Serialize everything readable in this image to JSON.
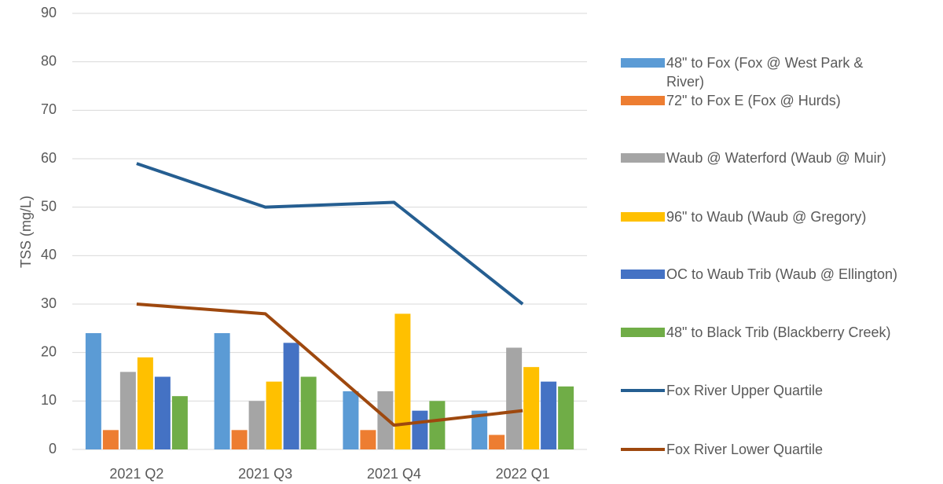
{
  "chart_data": {
    "type": "bar",
    "y_label": "TSS (mg/L)",
    "categories": [
      "2021 Q2",
      "2021 Q3",
      "2021 Q4",
      "2022 Q1"
    ],
    "ylim": [
      0,
      90
    ],
    "yticks": [
      0,
      10,
      20,
      30,
      40,
      50,
      60,
      70,
      80,
      90
    ],
    "grid": true,
    "series": [
      {
        "name": "48\" to Fox (Fox @ West Park & River)",
        "type": "bar",
        "color": "#5b9bd5",
        "values": [
          24,
          24,
          12,
          8
        ]
      },
      {
        "name": "72\" to Fox E (Fox @ Hurds)",
        "type": "bar",
        "color": "#ed7d31",
        "values": [
          4,
          4,
          4,
          3
        ]
      },
      {
        "name": "Waub @ Waterford (Waub @ Muir)",
        "type": "bar",
        "color": "#a5a5a5",
        "values": [
          16,
          10,
          12,
          21
        ]
      },
      {
        "name": "96\" to Waub (Waub @ Gregory)",
        "type": "bar",
        "color": "#ffc000",
        "values": [
          19,
          14,
          28,
          17
        ]
      },
      {
        "name": "OC to Waub Trib (Waub @ Ellington)",
        "type": "bar",
        "color": "#4472c4",
        "values": [
          15,
          22,
          8,
          14
        ]
      },
      {
        "name": "48\" to Black Trib (Blackberry Creek)",
        "type": "bar",
        "color": "#70ad47",
        "values": [
          11,
          15,
          10,
          13
        ]
      },
      {
        "name": "Fox River Upper Quartile",
        "type": "line",
        "color": "#255e91",
        "values": [
          59,
          50,
          51,
          30
        ]
      },
      {
        "name": "Fox River Lower Quartile",
        "type": "line",
        "color": "#9e480e",
        "values": [
          30,
          28,
          5,
          8
        ]
      }
    ]
  }
}
